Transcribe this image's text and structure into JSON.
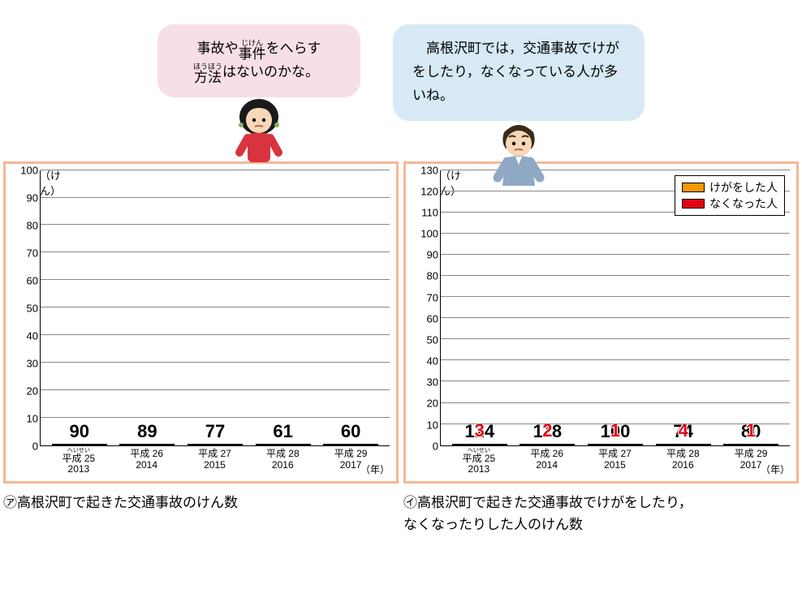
{
  "speech": {
    "left_line1a": "事故や",
    "left_ruby1_top": "じけん",
    "left_ruby1_base": "事件",
    "left_line1b": "をへらす",
    "left_ruby2_top": "ほうほう",
    "left_ruby2_base": "方法",
    "left_line2": "はないのかな。",
    "right": "　高根沢町では，交通事故でけがをしたり，なくなっている人が多いね。"
  },
  "chart_a": {
    "y_unit": "（けん）",
    "x_unit": "（年）",
    "y_max": 100,
    "y_ticks": [
      0,
      10,
      20,
      30,
      40,
      50,
      60,
      70,
      80,
      90,
      100
    ],
    "bars": [
      {
        "era_ruby": "へいせい",
        "era": "平成 25",
        "year": "2013",
        "value": 90
      },
      {
        "era": "平成 26",
        "year": "2014",
        "value": 89
      },
      {
        "era": "平成 27",
        "year": "2015",
        "value": 77
      },
      {
        "era": "平成 28",
        "year": "2016",
        "value": 61
      },
      {
        "era": "平成 29",
        "year": "2017",
        "value": 60
      }
    ],
    "caption_marker": "㋐",
    "caption": "高根沢町で起きた交通事故のけん数",
    "bar_color": "#f39800"
  },
  "chart_b": {
    "y_unit": "（けん）",
    "x_unit": "（年）",
    "y_max": 130,
    "y_ticks": [
      0,
      10,
      20,
      30,
      40,
      50,
      60,
      70,
      80,
      90,
      100,
      110,
      120,
      130
    ],
    "bars": [
      {
        "era_ruby": "へいせい",
        "era": "平成 25",
        "year": "2013",
        "injured": 124,
        "died": 3
      },
      {
        "era": "平成 26",
        "year": "2014",
        "injured": 118,
        "died": 2
      },
      {
        "era": "平成 27",
        "year": "2015",
        "injured": 100,
        "died": 1
      },
      {
        "era": "平成 28",
        "year": "2016",
        "injured": 74,
        "died": 4
      },
      {
        "era": "平成 29",
        "year": "2017",
        "injured": 80,
        "died": 1
      }
    ],
    "legend": {
      "injured": "けがをした人",
      "died": "なくなった人"
    },
    "colors": {
      "injured": "#f39800",
      "died": "#e60012"
    },
    "caption_marker": "㋑",
    "caption_l1": "高根沢町で起きた交通事故でけがをしたり，",
    "caption_l2": "なくなったりした人のけん数"
  }
}
